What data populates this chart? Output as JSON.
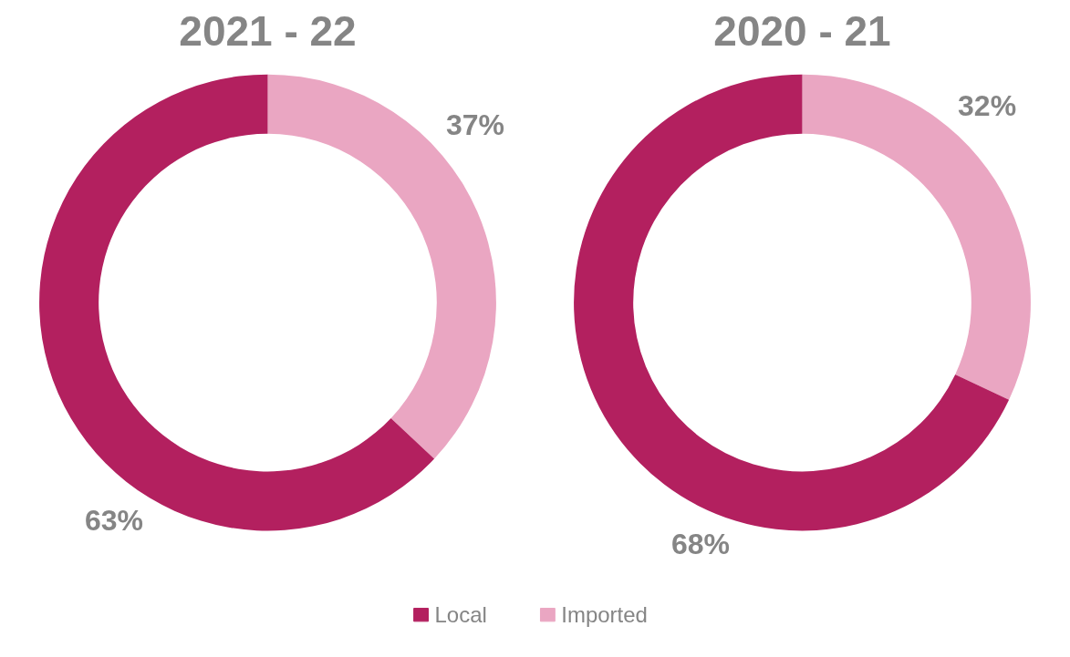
{
  "chart_data": [
    {
      "type": "donut",
      "title": "2021 - 22",
      "categories": [
        "Local",
        "Imported"
      ],
      "values": [
        63,
        37
      ],
      "colors": [
        "#b3205f",
        "#eaa6c2"
      ],
      "value_labels": [
        "63%",
        "37%"
      ],
      "legend": "bottom"
    },
    {
      "type": "donut",
      "title": "2020 - 21",
      "categories": [
        null,
        null
      ],
      "values": [
        68,
        32
      ],
      "colors": [
        "#b3205f",
        "#eaa6c2"
      ],
      "value_labels": [
        "68%",
        "32%"
      ]
    }
  ]
}
